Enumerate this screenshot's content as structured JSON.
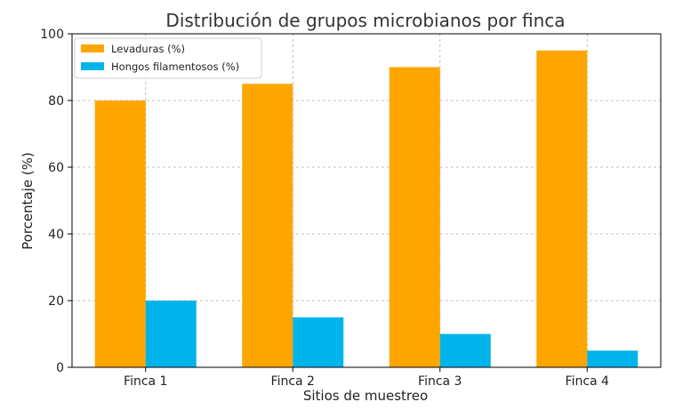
{
  "chart_data": {
    "type": "bar",
    "title": "Distribución de grupos microbianos por finca",
    "xlabel": "Sitios de muestreo",
    "ylabel": "Porcentaje (%)",
    "categories": [
      "Finca 1",
      "Finca 2",
      "Finca 3",
      "Finca 4"
    ],
    "series": [
      {
        "name": "Levaduras (%)",
        "color": "#FFA500",
        "values": [
          80,
          85,
          90,
          95
        ]
      },
      {
        "name": "Hongos filamentosos (%)",
        "color": "#00B4EB",
        "values": [
          20,
          15,
          10,
          5
        ]
      }
    ],
    "ylim": [
      0,
      100
    ],
    "yticks": [
      0,
      20,
      40,
      60,
      80,
      100
    ],
    "grid": true,
    "legend_position": "top-left"
  }
}
